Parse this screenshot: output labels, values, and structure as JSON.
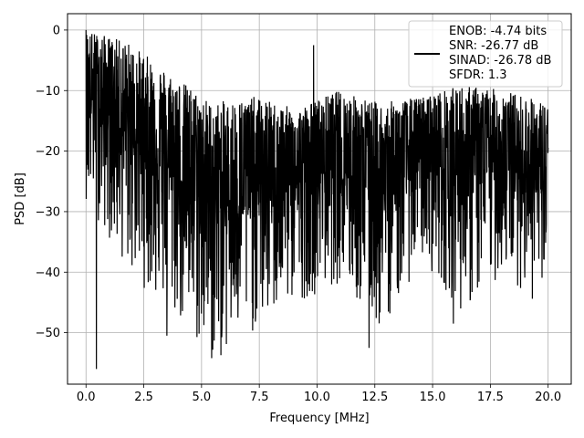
{
  "chart_data": {
    "type": "line",
    "title": "",
    "xlabel": "Frequency [MHz]",
    "ylabel": "PSD [dB]",
    "xlim": [
      -0.8,
      21.0
    ],
    "ylim": [
      -58.5,
      2.7
    ],
    "x_ticks": [
      {
        "value": 0.0,
        "label": "0.0"
      },
      {
        "value": 2.5,
        "label": "2.5"
      },
      {
        "value": 5.0,
        "label": "5.0"
      },
      {
        "value": 7.5,
        "label": "7.5"
      },
      {
        "value": 10.0,
        "label": "10.0"
      },
      {
        "value": 12.5,
        "label": "12.5"
      },
      {
        "value": 15.0,
        "label": "15.0"
      },
      {
        "value": 17.5,
        "label": "17.5"
      },
      {
        "value": 20.0,
        "label": "20.0"
      }
    ],
    "y_ticks": [
      {
        "value": 0,
        "label": "0"
      },
      {
        "value": -10,
        "label": "−10"
      },
      {
        "value": -20,
        "label": "−20"
      },
      {
        "value": -30,
        "label": "−30"
      },
      {
        "value": -40,
        "label": "−40"
      },
      {
        "value": -50,
        "label": "−50"
      }
    ],
    "grid": true,
    "legend_position": "top-right",
    "series_color": "#000000",
    "legend": [
      "ENOB: -4.74 bits",
      "SNR: -26.77 dB",
      "SINAD: -26.78 dB",
      "SFDR: 1.3"
    ],
    "series": [
      {
        "x_range": [
          0.0,
          20.0
        ],
        "y_peaks": [
          0,
          -2,
          -7,
          -12,
          -11,
          -13,
          -10,
          -12,
          -11,
          -9,
          -10,
          -12
        ],
        "y_troughs": [
          -28,
          -40,
          -47,
          -56,
          -50,
          -45,
          -42,
          -50,
          -38,
          -47,
          -40,
          -48
        ],
        "notable_points": [
          {
            "x": 0.0,
            "y": 0.0
          },
          {
            "x": 0.45,
            "y": -56.0
          },
          {
            "x": 3.5,
            "y": -50.5
          },
          {
            "x": 9.85,
            "y": -2.5
          },
          {
            "x": 12.25,
            "y": -52.5
          },
          {
            "x": 15.9,
            "y": -48.5
          }
        ]
      }
    ]
  }
}
